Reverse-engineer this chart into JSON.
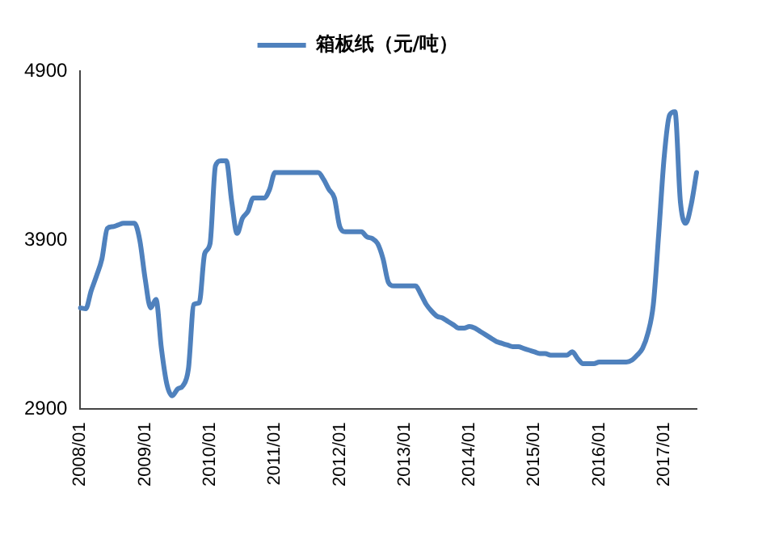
{
  "chart_data": {
    "type": "line",
    "categories": [
      "2008/01",
      null,
      null,
      null,
      null,
      null,
      null,
      null,
      null,
      null,
      null,
      null,
      "2009/01",
      null,
      null,
      null,
      null,
      null,
      null,
      null,
      null,
      null,
      null,
      null,
      "2010/01",
      null,
      null,
      null,
      null,
      null,
      null,
      null,
      null,
      null,
      null,
      null,
      "2011/01",
      null,
      null,
      null,
      null,
      null,
      null,
      null,
      null,
      null,
      null,
      null,
      "2012/01",
      null,
      null,
      null,
      null,
      null,
      null,
      null,
      null,
      null,
      null,
      null,
      "2013/01",
      null,
      null,
      null,
      null,
      null,
      null,
      null,
      null,
      null,
      null,
      null,
      "2014/01",
      null,
      null,
      null,
      null,
      null,
      null,
      null,
      null,
      null,
      null,
      null,
      "2015/01",
      null,
      null,
      null,
      null,
      null,
      null,
      null,
      null,
      null,
      null,
      null,
      "2016/01",
      null,
      null,
      null,
      null,
      null,
      null,
      null,
      null,
      null,
      null,
      null,
      "2017/01",
      null,
      null,
      null,
      null,
      null,
      null
    ],
    "series": [
      {
        "name": "箱板纸（元/吨）",
        "color": "#4f81bd",
        "values": [
          3500,
          3495,
          3600,
          3690,
          3790,
          3970,
          3980,
          3990,
          4000,
          4000,
          4000,
          3900,
          3670,
          3500,
          3550,
          3260,
          3050,
          2980,
          3020,
          3040,
          3140,
          3520,
          3530,
          3820,
          3880,
          4340,
          4370,
          4370,
          4130,
          3940,
          4030,
          4070,
          4150,
          4150,
          4150,
          4200,
          4300,
          4300,
          4300,
          4300,
          4300,
          4300,
          4300,
          4300,
          4300,
          4260,
          4200,
          4150,
          3980,
          3950,
          3950,
          3950,
          3950,
          3920,
          3910,
          3880,
          3790,
          3650,
          3630,
          3630,
          3630,
          3630,
          3630,
          3580,
          3520,
          3480,
          3450,
          3440,
          3420,
          3400,
          3380,
          3380,
          3390,
          3380,
          3360,
          3340,
          3320,
          3300,
          3290,
          3280,
          3270,
          3270,
          3260,
          3250,
          3240,
          3230,
          3230,
          3220,
          3220,
          3220,
          3220,
          3240,
          3200,
          3170,
          3170,
          3170,
          3180,
          3180,
          3180,
          3180,
          3180,
          3180,
          3190,
          3220,
          3260,
          3350,
          3520,
          3940,
          4390,
          4640,
          4660,
          4130,
          4000,
          4110,
          4300
        ]
      }
    ],
    "ylim": [
      2900,
      4900
    ],
    "yticks": [
      2900,
      3900,
      4900
    ],
    "grid": false,
    "legend": "top",
    "marker": "none",
    "line_style": "solid"
  }
}
